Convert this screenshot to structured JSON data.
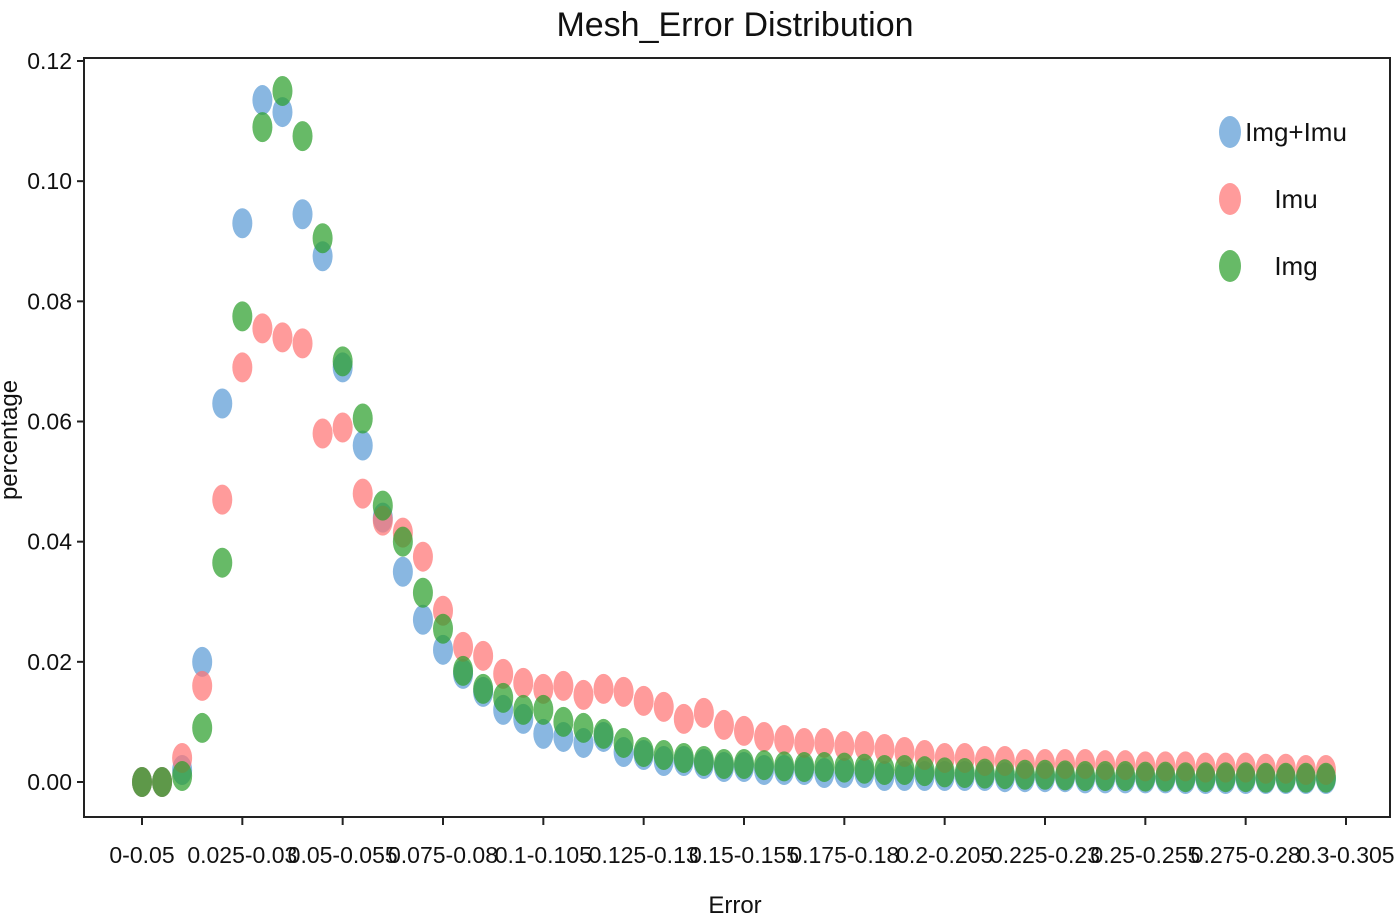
{
  "chart_data": {
    "type": "scatter",
    "title": "Mesh_Error Distribution",
    "xlabel": "Error",
    "ylabel": "percentage",
    "ylim": [
      0,
      0.12
    ],
    "y_ticks": [
      "0.00",
      "0.02",
      "0.04",
      "0.06",
      "0.08",
      "0.10",
      "0.12"
    ],
    "x_tick_labels": [
      "0-0.05",
      "0.025-0.03",
      "0.05-0.055",
      "0.075-0.08",
      "0.1-0.105",
      "0.125-0.13",
      "0.15-0.155",
      "0.175-0.18",
      "0.2-0.205",
      "0.225-0.23",
      "0.25-0.255",
      "0.275-0.28",
      "0.3-0.305"
    ],
    "x_tick_every": 5,
    "n_bins": 60,
    "legend_position": "top-right",
    "series": [
      {
        "name": "Img+Imu",
        "color": "#5b9bd5",
        "values": [
          0.0,
          0.0,
          0.002,
          0.02,
          0.063,
          0.093,
          0.1135,
          0.1115,
          0.0945,
          0.0875,
          0.069,
          0.056,
          0.044,
          0.035,
          0.027,
          0.022,
          0.018,
          0.015,
          0.012,
          0.0105,
          0.008,
          0.0075,
          0.0065,
          0.0075,
          0.005,
          0.0045,
          0.0035,
          0.0035,
          0.003,
          0.0025,
          0.0025,
          0.002,
          0.002,
          0.002,
          0.0015,
          0.0015,
          0.0015,
          0.001,
          0.001,
          0.001,
          0.001,
          0.001,
          0.001,
          0.0008,
          0.0008,
          0.0008,
          0.0008,
          0.0006,
          0.0006,
          0.0006,
          0.0006,
          0.0006,
          0.0005,
          0.0005,
          0.0005,
          0.0005,
          0.0005,
          0.0005,
          0.0005,
          0.0005
        ]
      },
      {
        "name": "Imu",
        "color": "#ff7575",
        "values": [
          0.0,
          0.0,
          0.004,
          0.016,
          0.047,
          0.069,
          0.0755,
          0.074,
          0.073,
          0.058,
          0.059,
          0.048,
          0.0435,
          0.0415,
          0.0375,
          0.0285,
          0.0225,
          0.021,
          0.018,
          0.0165,
          0.0155,
          0.016,
          0.0145,
          0.0155,
          0.015,
          0.0135,
          0.0125,
          0.0105,
          0.0115,
          0.0095,
          0.0085,
          0.0075,
          0.007,
          0.0065,
          0.0065,
          0.006,
          0.006,
          0.0055,
          0.005,
          0.0045,
          0.004,
          0.004,
          0.0035,
          0.0035,
          0.003,
          0.003,
          0.003,
          0.003,
          0.0028,
          0.0028,
          0.0026,
          0.0026,
          0.0026,
          0.0024,
          0.0024,
          0.0024,
          0.0022,
          0.0022,
          0.002,
          0.002
        ]
      },
      {
        "name": "Img",
        "color": "#2ca02c",
        "values": [
          0.0,
          0.0,
          0.001,
          0.009,
          0.0365,
          0.0775,
          0.109,
          0.115,
          0.1075,
          0.0905,
          0.07,
          0.0605,
          0.046,
          0.04,
          0.0315,
          0.0255,
          0.0185,
          0.0155,
          0.014,
          0.012,
          0.012,
          0.01,
          0.009,
          0.008,
          0.0065,
          0.005,
          0.0045,
          0.004,
          0.0035,
          0.003,
          0.003,
          0.0028,
          0.0026,
          0.0025,
          0.0025,
          0.0024,
          0.0022,
          0.002,
          0.002,
          0.0018,
          0.0016,
          0.0015,
          0.0014,
          0.0013,
          0.0012,
          0.0012,
          0.0011,
          0.001,
          0.001,
          0.001,
          0.0009,
          0.0009,
          0.0008,
          0.0008,
          0.0008,
          0.0008,
          0.0007,
          0.0007,
          0.0007,
          0.0007
        ]
      }
    ]
  }
}
